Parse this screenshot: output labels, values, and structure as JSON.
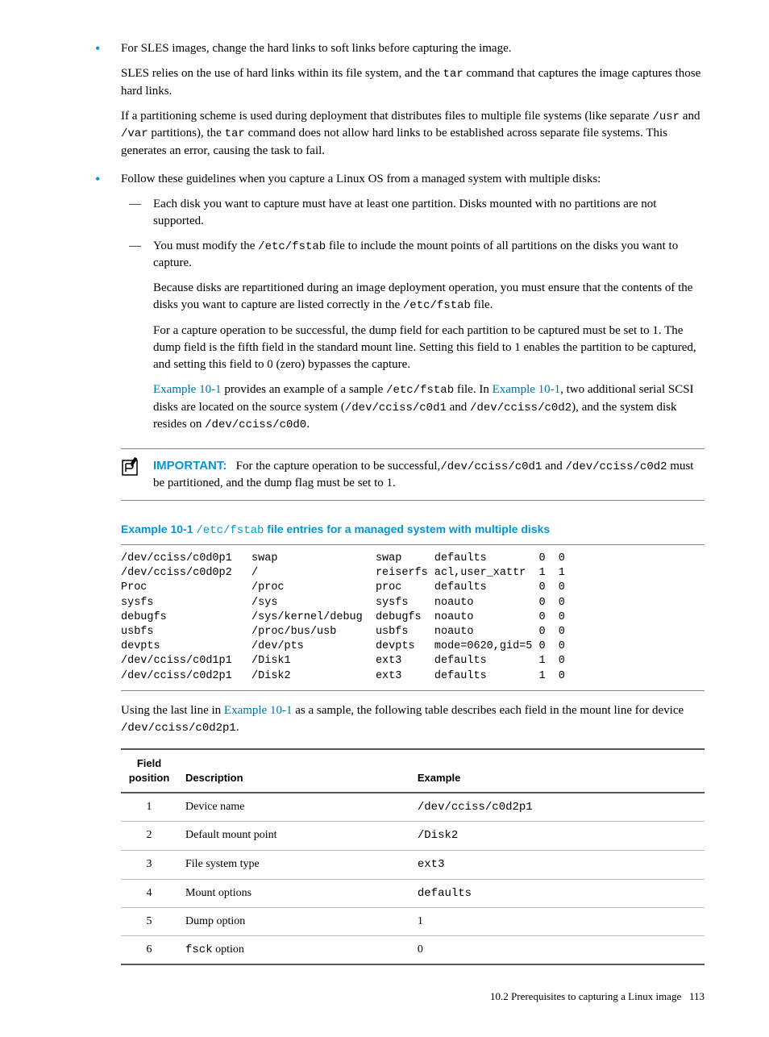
{
  "bullets": {
    "b1": {
      "p1a": "For SLES images, change the hard links to soft links before capturing the image.",
      "p2a": "SLES relies on the use of hard links within its file system, and the ",
      "p2b": "tar",
      "p2c": " command that captures the image captures those hard links.",
      "p3a": "If a partitioning scheme is used during deployment that distributes files to multiple file systems (like separate ",
      "p3b": "/usr",
      "p3c": " and ",
      "p3d": "/var",
      "p3e": " partitions), the ",
      "p3f": "tar",
      "p3g": " command does not allow hard links to be established across separate file systems. This generates an error, causing the task to fail."
    },
    "b2": {
      "intro": "Follow these guidelines when you capture a Linux OS from a managed system with multiple disks:",
      "s1": "Each disk you want to capture must have at least one partition. Disks mounted with no partitions are not supported.",
      "s2a": "You must modify the ",
      "s2b": "/etc/fstab",
      "s2c": " file to include the mount points of all partitions on the disks you want to capture.",
      "s2p2a": "Because disks are repartitioned during an image deployment operation, you must ensure that the contents of the disks you want to capture are listed correctly in the ",
      "s2p2b": "/etc/fstab",
      "s2p2c": " file.",
      "s2p3": "For a capture operation to be successful, the dump field for each partition to be captured must be set to 1. The dump field is the fifth field in the standard mount line. Setting this field to 1 enables the partition to be captured, and setting this field to 0 (zero) bypasses the capture.",
      "s2p4_l1": "Example 10-1",
      "s2p4a": " provides an example of a sample ",
      "s2p4b": "/etc/fstab",
      "s2p4c": " file. In ",
      "s2p4_l2": "Example 10-1",
      "s2p4d": ", two additional serial SCSI disks are located on the source system (",
      "s2p4e": "/dev/cciss/c0d1",
      "s2p4f": " and ",
      "s2p4g": "/dev/cciss/c0d2",
      "s2p4h": "), and the system disk resides on ",
      "s2p4i": "/dev/cciss/c0d0",
      "s2p4j": "."
    }
  },
  "important": {
    "label": "IMPORTANT:",
    "t1": "For the capture operation to be successful,",
    "t2": "/dev/cciss/c0d1",
    "t3": " and ",
    "t4": "/dev/cciss/c0d2",
    "t5": " must be partitioned, and the dump flag must be set to 1."
  },
  "example": {
    "label": "Example 10-1 ",
    "path": "/etc/fstab",
    "rest": " file entries for a managed system with multiple disks",
    "content": "/dev/cciss/c0d0p1   swap               swap     defaults        0  0\n/dev/cciss/c0d0p2   /                  reiserfs acl,user_xattr  1  1\nProc                /proc              proc     defaults        0  0\nsysfs               /sys               sysfs    noauto          0  0\ndebugfs             /sys/kernel/debug  debugfs  noauto          0  0\nusbfs               /proc/bus/usb      usbfs    noauto          0  0\ndevpts              /dev/pts           devpts   mode=0620,gid=5 0  0\n/dev/cciss/c0d1p1   /Disk1             ext3     defaults        1  0\n/dev/cciss/c0d2p1   /Disk2             ext3     defaults        1  0"
  },
  "after_example": {
    "t1": "Using the last line in ",
    "link": "Example 10-1",
    "t2": " as a sample, the following table describes each field in the mount line for device ",
    "t3": "/dev/cciss/c0d2p1",
    "t4": "."
  },
  "table": {
    "headers": {
      "h1": "Field position",
      "h2": "Description",
      "h3": "Example"
    },
    "rows": [
      {
        "pos": "1",
        "desc": "Device name",
        "ex": "/dev/cciss/c0d2p1",
        "ex_code": true
      },
      {
        "pos": "2",
        "desc": "Default mount point",
        "ex": "/Disk2",
        "ex_code": true
      },
      {
        "pos": "3",
        "desc": "File system type",
        "ex": "ext3",
        "ex_code": true
      },
      {
        "pos": "4",
        "desc": "Mount options",
        "ex": "defaults",
        "ex_code": true
      },
      {
        "pos": "5",
        "desc": "Dump option",
        "ex": "1",
        "ex_code": false
      },
      {
        "pos": "6",
        "desc_pre": "fsck",
        "desc_post": " option",
        "ex": "0",
        "ex_code": false
      }
    ]
  },
  "footer": {
    "section": "10.2 Prerequisites to capturing a Linux image",
    "page": "113"
  }
}
